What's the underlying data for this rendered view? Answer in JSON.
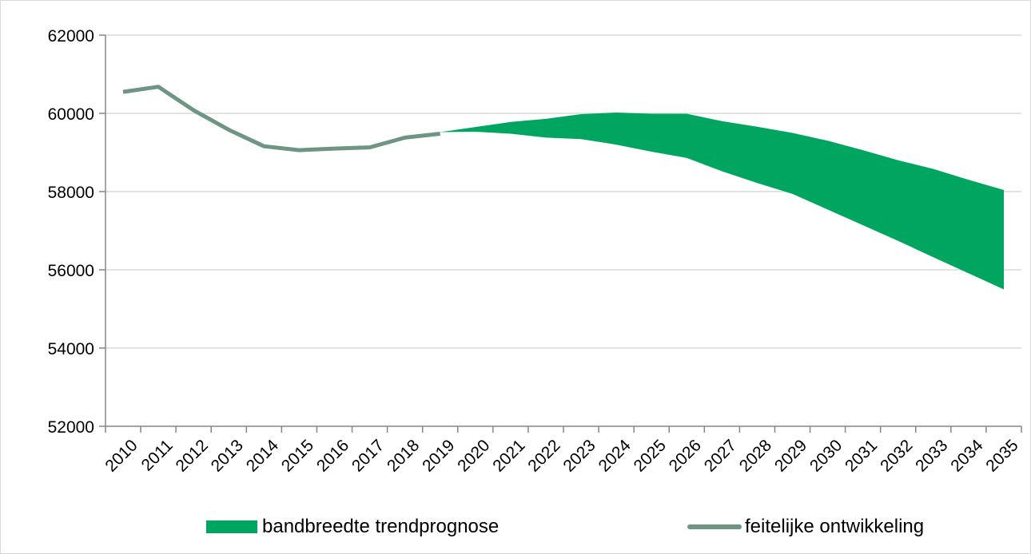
{
  "chart_data": {
    "type": "area",
    "years": [
      2010,
      2011,
      2012,
      2013,
      2014,
      2015,
      2016,
      2017,
      2018,
      2019,
      2020,
      2021,
      2022,
      2023,
      2024,
      2025,
      2026,
      2027,
      2028,
      2029,
      2030,
      2031,
      2032,
      2033,
      2034,
      2035
    ],
    "x_tick_labels": [
      "2010",
      "2011",
      "2012",
      "2013",
      "2014",
      "2015",
      "2016",
      "2017",
      "2018",
      "2019",
      "2020",
      "2021",
      "2022",
      "2023",
      "2024",
      "2025",
      "2026",
      "2027",
      "2028",
      "2029",
      "2030",
      "2031",
      "2032",
      "2033",
      "2034",
      "2035"
    ],
    "ylim": [
      52000,
      62000
    ],
    "y_ticks": [
      52000,
      54000,
      56000,
      58000,
      60000,
      62000
    ],
    "y_tick_labels": [
      "52000",
      "54000",
      "56000",
      "58000",
      "60000",
      "62000"
    ],
    "grid": true,
    "legend_position": "bottom",
    "series": [
      {
        "name": "bandbreedte trendprognose",
        "kind": "band",
        "color": "#00a560",
        "x": [
          2019,
          2020,
          2021,
          2022,
          2023,
          2024,
          2025,
          2026,
          2027,
          2028,
          2029,
          2030,
          2031,
          2032,
          2033,
          2034,
          2035
        ],
        "upper": [
          59520,
          59650,
          59780,
          59860,
          59980,
          60020,
          59990,
          59990,
          59800,
          59660,
          59500,
          59300,
          59060,
          58800,
          58580,
          58300,
          58040
        ],
        "lower": [
          59520,
          59530,
          59480,
          59380,
          59340,
          59200,
          59020,
          58860,
          58520,
          58220,
          57940,
          57540,
          57140,
          56740,
          56320,
          55910,
          55500
        ]
      },
      {
        "name": "feitelijke ontwikkeling",
        "kind": "line",
        "color": "#6e9483",
        "x": [
          2010,
          2011,
          2012,
          2013,
          2014,
          2015,
          2016,
          2017,
          2018,
          2019
        ],
        "values": [
          60550,
          60680,
          60080,
          59580,
          59160,
          59060,
          59100,
          59130,
          59380,
          59480
        ]
      }
    ]
  }
}
